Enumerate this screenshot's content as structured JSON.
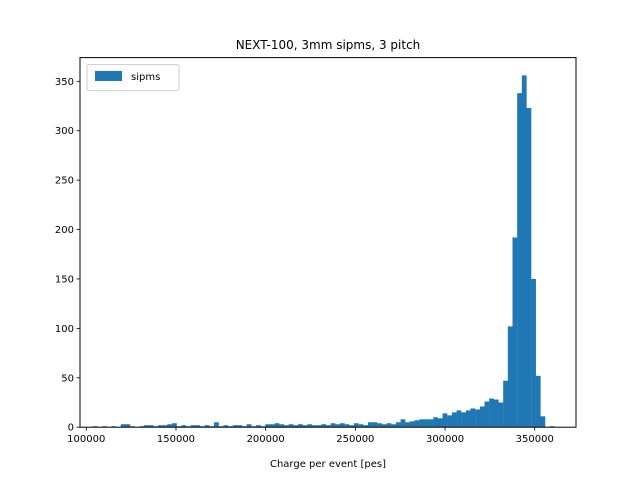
{
  "chart_data": {
    "type": "bar",
    "title": "NEXT-100, 3mm sipms, 3 pitch",
    "xlabel": "Charge per event [pes]",
    "ylabel": "",
    "xlim": [
      96500,
      373000
    ],
    "ylim": [
      0,
      374
    ],
    "xticks": [
      100000,
      150000,
      200000,
      250000,
      300000,
      350000
    ],
    "xtick_labels": [
      "100000",
      "150000",
      "200000",
      "250000",
      "300000",
      "350000"
    ],
    "yticks": [
      0,
      50,
      100,
      150,
      200,
      250,
      300,
      350
    ],
    "ytick_labels": [
      "0",
      "50",
      "100",
      "150",
      "200",
      "250",
      "300",
      "350"
    ],
    "grid": false,
    "legend_position": "top-left",
    "series": [
      {
        "name": "sipms",
        "color": "#1f77b4",
        "bin_start": 101000,
        "bin_width": 2600,
        "values": [
          0,
          1,
          0,
          1,
          0,
          1,
          0,
          3,
          3,
          1,
          0,
          1,
          2,
          2,
          1,
          2,
          2,
          3,
          4,
          1,
          2,
          1,
          2,
          2,
          1,
          2,
          1,
          5,
          1,
          2,
          1,
          2,
          2,
          1,
          3,
          1,
          2,
          1,
          3,
          3,
          4,
          3,
          2,
          3,
          2,
          3,
          2,
          3,
          2,
          2,
          3,
          2,
          4,
          3,
          4,
          3,
          2,
          4,
          3,
          2,
          5,
          5,
          4,
          3,
          4,
          3,
          5,
          8,
          5,
          6,
          7,
          8,
          8,
          8,
          10,
          9,
          14,
          12,
          15,
          17,
          15,
          17,
          19,
          18,
          21,
          26,
          29,
          28,
          25,
          47,
          102,
          192,
          338,
          356,
          323,
          150,
          52,
          11,
          0,
          1,
          0
        ]
      }
    ]
  }
}
